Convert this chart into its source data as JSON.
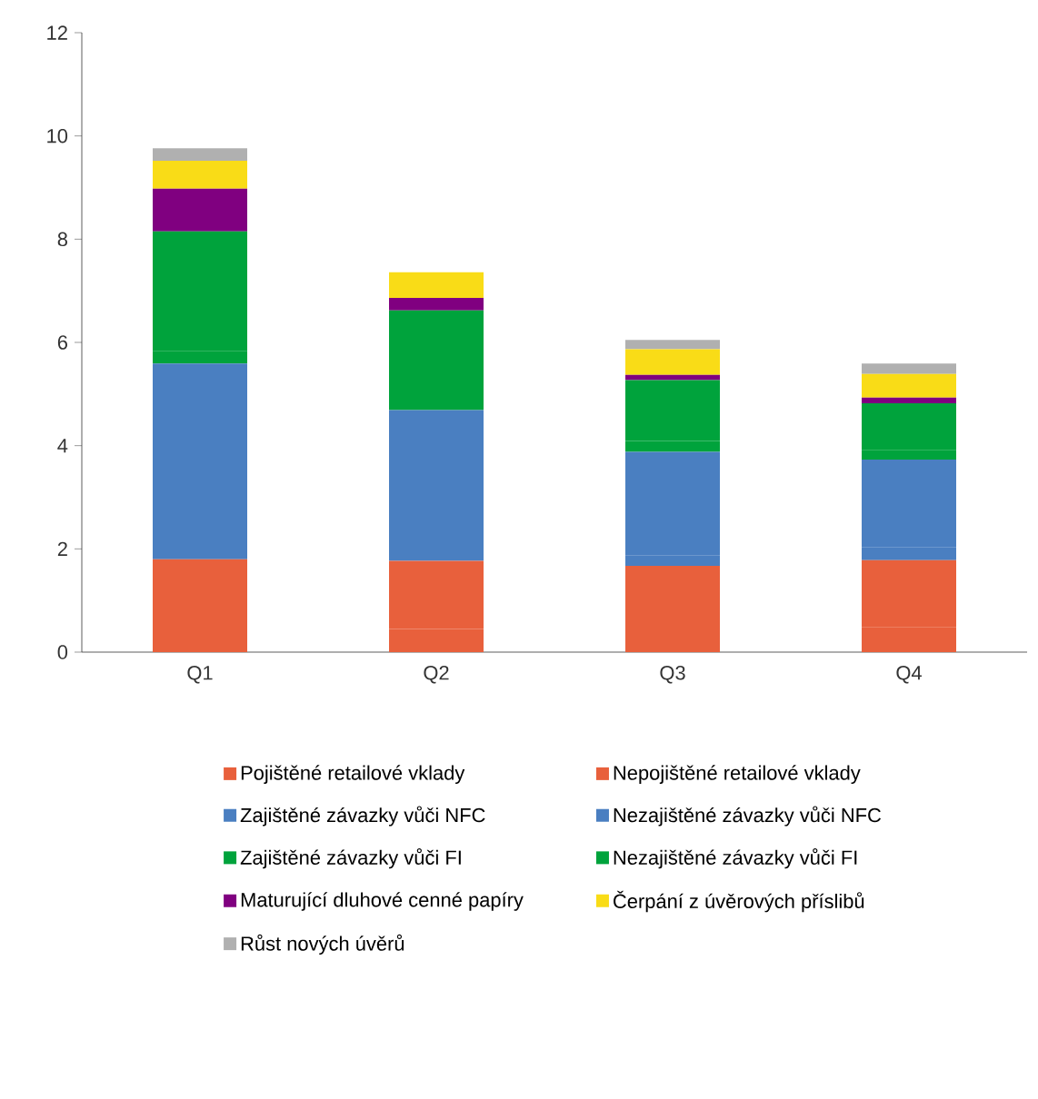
{
  "chart_data": {
    "type": "bar",
    "stacked": true,
    "categories": [
      "Q1",
      "Q2",
      "Q3",
      "Q4"
    ],
    "series": [
      {
        "name": "Pojištěné retailové vklady",
        "color": "#e8603c",
        "values": [
          0.44,
          0.45,
          0.44,
          0.48
        ]
      },
      {
        "name": "Nepojištěné retailové vklady",
        "color": "#e8603c",
        "values": [
          1.36,
          1.32,
          1.23,
          1.3
        ]
      },
      {
        "name": "Zajištěné závazky vůči NFC",
        "color": "#4a7fc1",
        "values": [
          0.26,
          0.29,
          0.21,
          0.25
        ]
      },
      {
        "name": "Nezajištěné závazky vůči NFC",
        "color": "#4a7fc1",
        "values": [
          3.53,
          2.63,
          2.0,
          1.7
        ]
      },
      {
        "name": "Zajištěné závazky vůči FI",
        "color": "#00a33c",
        "values": [
          0.24,
          0.22,
          0.21,
          0.18
        ]
      },
      {
        "name": "Nezajištěné závazky vůči FI",
        "color": "#00a33c",
        "values": [
          2.32,
          1.71,
          1.18,
          0.91
        ]
      },
      {
        "name": "Maturující dluhové cenné papíry",
        "color": "#800080",
        "values": [
          0.83,
          0.24,
          0.1,
          0.11
        ]
      },
      {
        "name": "Čerpání z úvěrových příslibů",
        "color": "#f9dc17",
        "values": [
          0.54,
          0.5,
          0.5,
          0.46
        ]
      },
      {
        "name": "Růst nových úvěrů",
        "color": "#b0b0b0",
        "values": [
          0.24,
          0,
          0.18,
          0.2
        ]
      }
    ],
    "ylim": [
      0,
      12
    ],
    "yticks": [
      0,
      2,
      4,
      6,
      8,
      10,
      12
    ],
    "grid": false,
    "legend": "bottom"
  }
}
